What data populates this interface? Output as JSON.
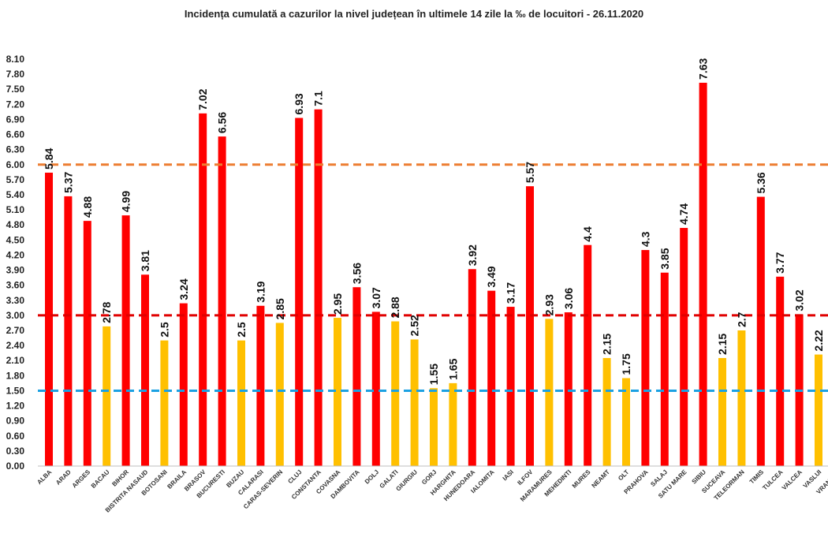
{
  "chart_data": {
    "type": "bar",
    "title": "Incidența cumulată a cazurilor la nivel județean în ultimele 14 zile la ‰ de locuitori - 26.11.2020",
    "xlabel": "",
    "ylabel": "",
    "ylim": [
      0,
      8.1
    ],
    "y_ticks": [
      "0.00",
      "0.30",
      "0.60",
      "0.90",
      "1.20",
      "1.50",
      "1.80",
      "2.10",
      "2.40",
      "2.70",
      "3.00",
      "3.30",
      "3.60",
      "3.90",
      "4.20",
      "4.50",
      "4.80",
      "5.10",
      "5.40",
      "5.70",
      "6.00",
      "6.30",
      "6.60",
      "6.90",
      "7.20",
      "7.50",
      "7.80",
      "8.10"
    ],
    "grid": false,
    "legend": "none",
    "categories": [
      "ALBA",
      "ARAD",
      "ARGES",
      "BACAU",
      "BIHOR",
      "BISTRITA NASAUD",
      "BOTOSANI",
      "BRAILA",
      "BRASOV",
      "BUCURESTI",
      "BUZAU",
      "CALARASI",
      "CARAS-SEVERIN",
      "CLUJ",
      "CONSTANTA",
      "COVASNA",
      "DAMBOVITA",
      "DOLJ",
      "GALATI",
      "GIURGIU",
      "GORJ",
      "HARGHITA",
      "HUNEDOARA",
      "IALOMITA",
      "IASI",
      "ILFOV",
      "MARAMURES",
      "MEHEDINTI",
      "MURES",
      "NEAMT",
      "OLT",
      "PRAHOVA",
      "SALAJ",
      "SATU MARE",
      "SIBIU",
      "SUCEAVA",
      "TELEORMAN",
      "TIMIS",
      "TULCEA",
      "VALCEA",
      "VASLUI",
      "VRANCEA"
    ],
    "values": [
      5.84,
      5.37,
      4.88,
      2.78,
      4.99,
      3.81,
      2.5,
      3.24,
      7.02,
      6.56,
      2.5,
      3.19,
      2.85,
      6.93,
      7.1,
      2.95,
      3.56,
      3.07,
      2.88,
      2.52,
      1.55,
      1.65,
      3.92,
      3.49,
      3.17,
      5.57,
      2.93,
      3.06,
      4.4,
      2.15,
      1.75,
      4.3,
      3.85,
      4.74,
      7.63,
      2.15,
      2.7,
      5.36,
      3.77,
      3.02,
      2.22,
      null
    ],
    "data_labels": [
      "5.84",
      "5.37",
      "4.88",
      "2.78",
      "4.99",
      "3.81",
      "2.5",
      "3.24",
      "7.02",
      "6.56",
      "2.5",
      "3.19",
      "2.85",
      "6.93",
      "7.1",
      "2.95",
      "3.56",
      "3.07",
      "2.88",
      "2.52",
      "1.55",
      "1.65",
      "3.92",
      "3.49",
      "3.17",
      "5.57",
      "2.93",
      "3.06",
      "4.4",
      "2.15",
      "1.75",
      "4.3",
      "3.85",
      "4.74",
      "7.63",
      "2.15",
      "2.7",
      "5.36",
      "3.77",
      "3.02",
      "2.22",
      ""
    ],
    "thresholds": [
      {
        "value": 6.0,
        "color": "#ED7D31"
      },
      {
        "value": 3.0,
        "color": "#E00000"
      },
      {
        "value": 1.5,
        "color": "#1BA1E2"
      }
    ],
    "colors": {
      "high": "#FF0000",
      "medium": "#FFC000"
    }
  }
}
